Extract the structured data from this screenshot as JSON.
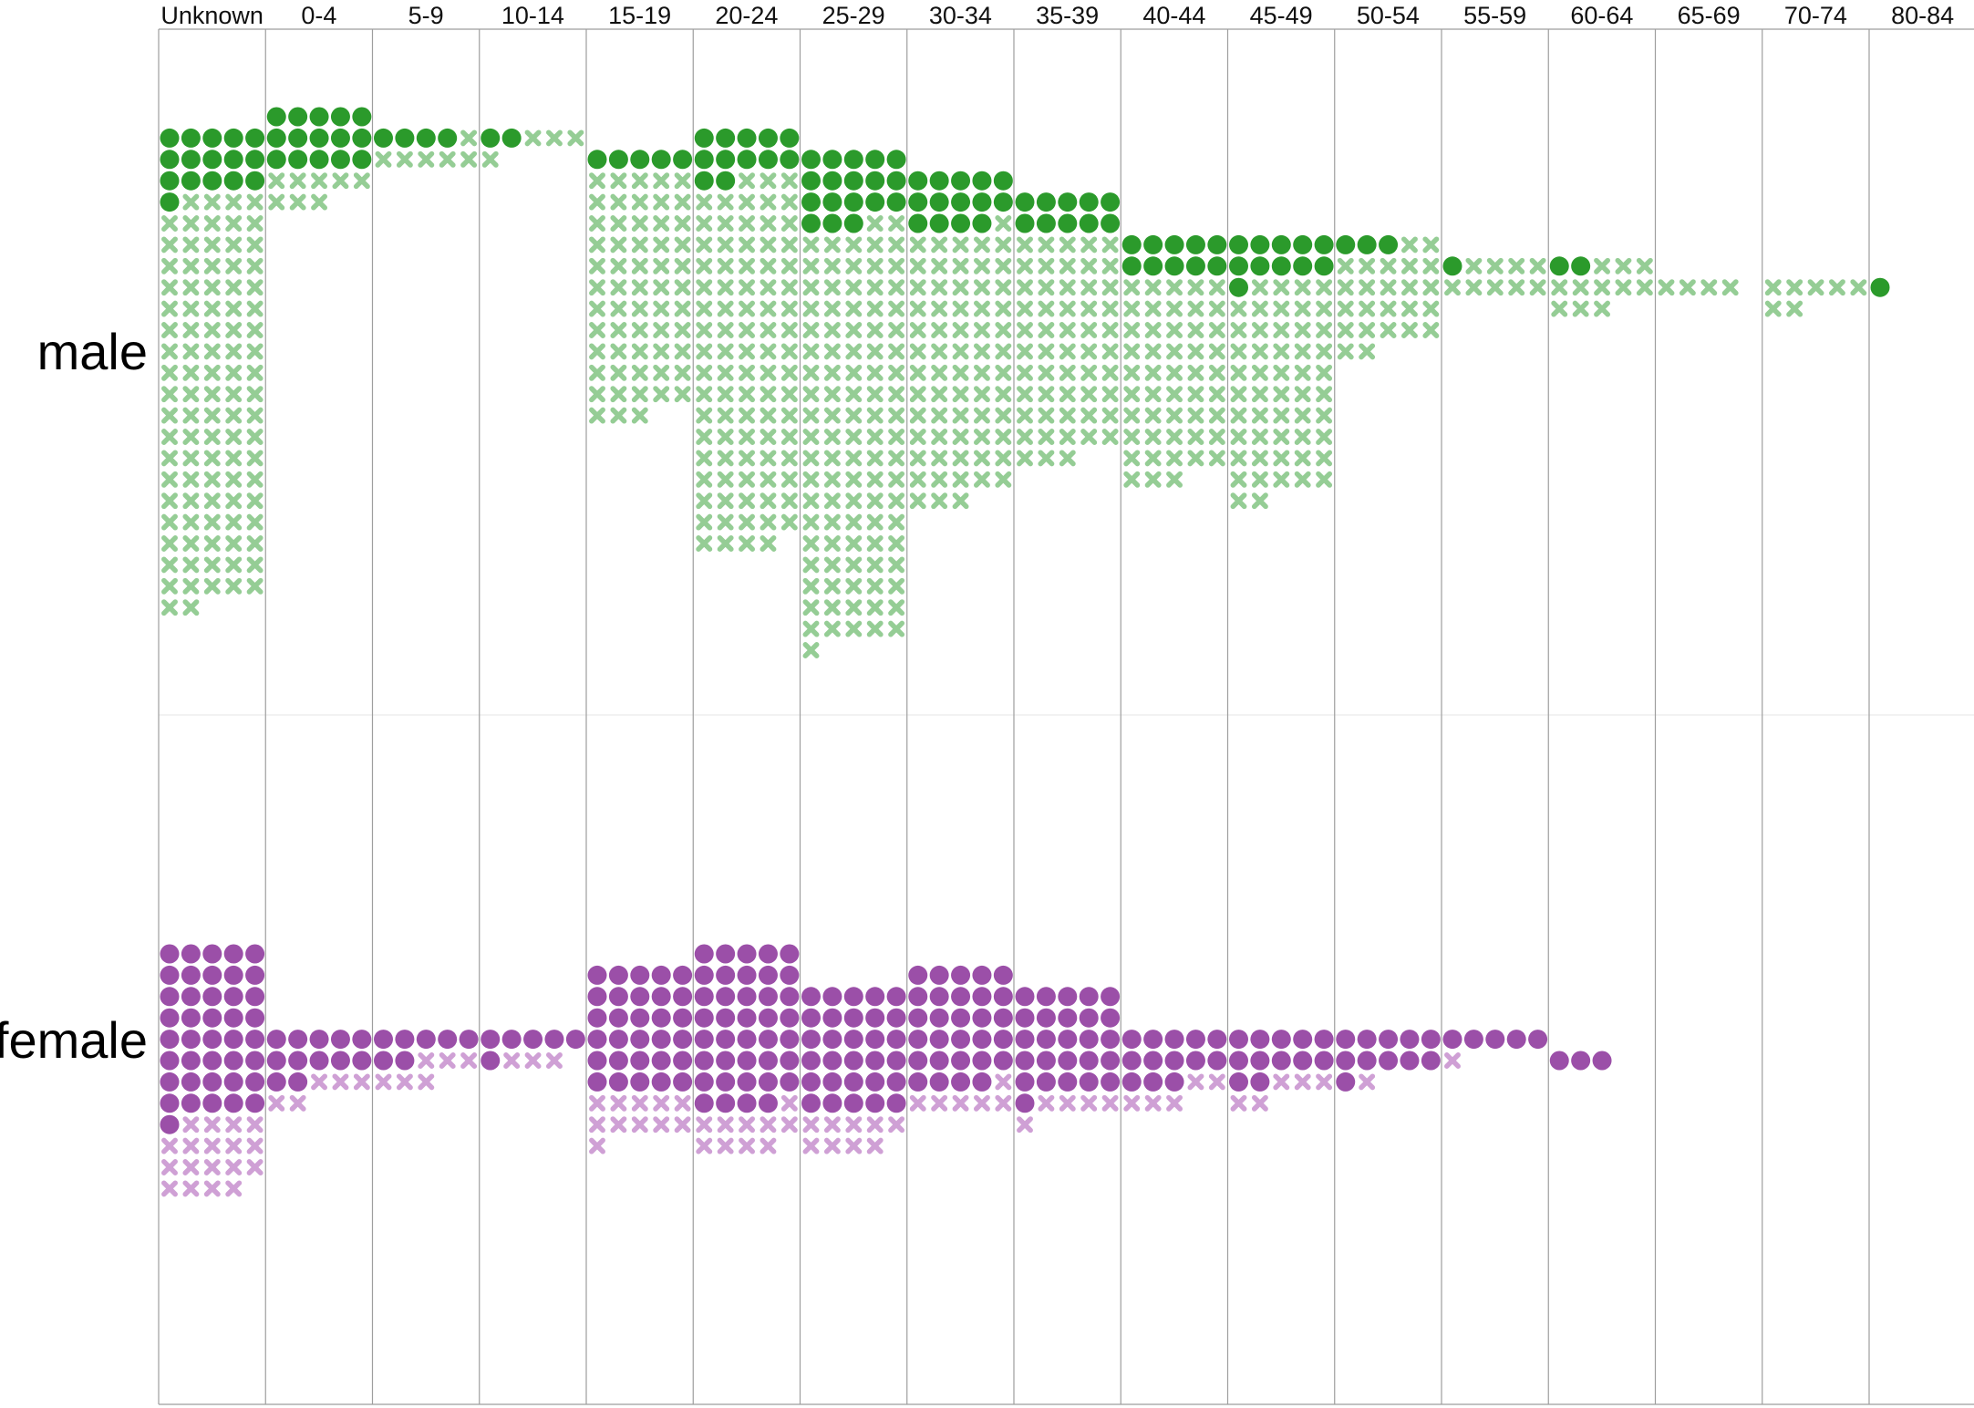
{
  "chart_data": {
    "type": "scatter",
    "categories": [
      "Unknown",
      "0-4",
      "5-9",
      "10-14",
      "15-19",
      "20-24",
      "25-29",
      "30-34",
      "35-39",
      "40-44",
      "45-49",
      "50-54",
      "55-59",
      "60-64",
      "65-69",
      "70-74",
      "80-84"
    ],
    "rows": [
      {
        "label": "male",
        "color": "#2b9a2b",
        "faded_color": "#95cd95",
        "solid": [
          16,
          15,
          4,
          2,
          5,
          12,
          18,
          14,
          10,
          10,
          11,
          3,
          1,
          2,
          0,
          0,
          1
        ],
        "cross": [
          96,
          8,
          6,
          4,
          58,
          87,
          98,
          64,
          53,
          48,
          51,
          24,
          9,
          11,
          4,
          7,
          0
        ],
        "top": [
          1,
          0,
          1,
          1,
          2,
          1,
          2,
          3,
          4,
          6,
          6,
          6,
          7,
          7,
          8,
          8,
          8
        ]
      },
      {
        "label": "female",
        "color": "#9b4fa8",
        "faded_color": "#cfa0d5",
        "solid": [
          41,
          12,
          7,
          6,
          30,
          39,
          30,
          29,
          26,
          13,
          12,
          11,
          5,
          3,
          0,
          0,
          0
        ],
        "cross": [
          18,
          5,
          6,
          3,
          11,
          10,
          9,
          6,
          5,
          5,
          5,
          1,
          1,
          0,
          0,
          0,
          0
        ],
        "top": [
          0,
          4,
          4,
          4,
          1,
          0,
          2,
          1,
          2,
          4,
          4,
          4,
          4,
          5,
          5,
          5,
          5
        ]
      }
    ],
    "marker_legend": {
      "solid": "circle",
      "cross": "x"
    }
  }
}
